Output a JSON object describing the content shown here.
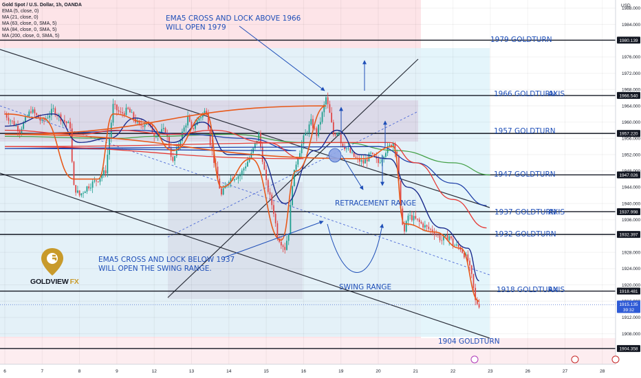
{
  "legend": {
    "title": "Gold Spot / U.S. Dollar, 1h, OANDA",
    "lines": [
      "EMA (5, close, 0)",
      "MA (21, close, 0)",
      "MA (63, close, 0, SMA, 5)",
      "MA (84, close, 0, SMA, 5)",
      "MA (200, close, 0, SMA, 5)"
    ]
  },
  "brand": {
    "name": "GOLDVIEW",
    "suffix": "FX"
  },
  "currency": "USD",
  "colors": {
    "annotation": "#1f4fb8",
    "ema5": "#e8591a",
    "ma21": "#1a2a8c",
    "ma63": "#e53935",
    "ma84": "#1e3fa8",
    "ma200": "#43a047",
    "zone_red": "#fde4e8",
    "zone_blue": "#dff3fa",
    "gold": "#c89a2b"
  },
  "chart_data": {
    "type": "candlestick",
    "instrument": "Gold Spot / U.S. Dollar",
    "timeframe": "1h",
    "ylim": [
      1900.5,
      1990
    ],
    "x_ticks": [
      "6",
      "7",
      "8",
      "9",
      "12",
      "13",
      "14",
      "15",
      "16",
      "19",
      "20",
      "21",
      "22",
      "23",
      "26",
      "27",
      "28"
    ],
    "y_ticks": [
      1908,
      1912,
      1916,
      1920,
      1924,
      1928,
      1932,
      1936,
      1940,
      1944,
      1948,
      1952,
      1956,
      1960,
      1964,
      1968,
      1972,
      1976,
      1980,
      1984,
      1988
    ],
    "price_labels": [
      {
        "value": 1980.139,
        "label": "1980.139"
      },
      {
        "value": 1966.54,
        "label": "1966.540"
      },
      {
        "value": 1957.22,
        "label": "1957.220"
      },
      {
        "value": 1947.026,
        "label": "1947.026"
      },
      {
        "value": 1937.998,
        "label": "1937.998"
      },
      {
        "value": 1932.397,
        "label": "1932.397"
      },
      {
        "value": 1918.481,
        "label": "1918.481"
      },
      {
        "value": 1904.358,
        "label": "1904.358"
      }
    ],
    "current": {
      "value": 1915.135,
      "label": "1915.135",
      "countdown": "39:32"
    },
    "levels": [
      {
        "label": "1979 GOLDTURN",
        "axis": ""
      },
      {
        "label": "1966 GOLDTURN",
        "axis": "AXIS"
      },
      {
        "label": "1957 GOLDTURN",
        "axis": ""
      },
      {
        "label": "1947 GOLDTURN",
        "axis": ""
      },
      {
        "label": "1937 GOLDTURN",
        "axis": "AXIS"
      },
      {
        "label": "1932 GOLDTURN",
        "axis": ""
      },
      {
        "label": "1918 GOLDTURN",
        "axis": "AXIS"
      },
      {
        "label": "1904 GOLDTURN",
        "axis": ""
      }
    ],
    "annotations": {
      "top_note": [
        "EMA5 CROSS AND LOCK ABOVE 1966",
        "WILL OPEN 1979"
      ],
      "bottom_note": [
        "EMA5 CROSS AND LOCK BELOW 1937",
        "WILL OPEN THE SWING RANGE."
      ],
      "retracement": "RETRACEMENT RANGE",
      "swing": "SWING RANGE"
    },
    "series": [
      {
        "name": "EMA (5, close, 0)"
      },
      {
        "name": "MA (21, close, 0)"
      },
      {
        "name": "MA (63, close, 0, SMA, 5)"
      },
      {
        "name": "MA (84, close, 0, SMA, 5)"
      },
      {
        "name": "MA (200, close, 0, SMA, 5)"
      }
    ],
    "price_path": [
      [
        6,
        1962
      ],
      [
        6.4,
        1958
      ],
      [
        6.7,
        1963
      ],
      [
        7,
        1960
      ],
      [
        7.3,
        1963
      ],
      [
        7.5,
        1961
      ],
      [
        7.75,
        1959
      ],
      [
        7.8,
        1950
      ],
      [
        7.85,
        1944
      ],
      [
        8,
        1942
      ],
      [
        8.2,
        1944
      ],
      [
        8.5,
        1946
      ],
      [
        8.7,
        1948
      ],
      [
        8.8,
        1956
      ],
      [
        8.9,
        1964
      ],
      [
        9.1,
        1962
      ],
      [
        9.3,
        1963
      ],
      [
        9.6,
        1959
      ],
      [
        9.8,
        1960
      ],
      [
        12,
        1957
      ],
      [
        12.3,
        1958
      ],
      [
        12.5,
        1950
      ],
      [
        12.7,
        1956
      ],
      [
        12.9,
        1961
      ],
      [
        13,
        1958
      ],
      [
        13.2,
        1961
      ],
      [
        13.4,
        1963
      ],
      [
        13.5,
        1955
      ],
      [
        13.7,
        1946
      ],
      [
        13.8,
        1942
      ],
      [
        14,
        1946
      ],
      [
        14.3,
        1947
      ],
      [
        14.6,
        1952
      ],
      [
        14.8,
        1957
      ],
      [
        15,
        1945
      ],
      [
        15.2,
        1938
      ],
      [
        15.3,
        1932
      ],
      [
        15.5,
        1929
      ],
      [
        15.6,
        1933
      ],
      [
        15.7,
        1945
      ],
      [
        15.8,
        1950
      ],
      [
        16,
        1956
      ],
      [
        16.2,
        1960
      ],
      [
        16.35,
        1957
      ],
      [
        16.5,
        1962
      ],
      [
        16.6,
        1966
      ],
      [
        16.7,
        1962
      ],
      [
        16.8,
        1957
      ],
      [
        16.95,
        1958
      ],
      [
        19,
        1955
      ],
      [
        19.2,
        1953
      ],
      [
        19.4,
        1951
      ],
      [
        19.6,
        1950
      ],
      [
        19.8,
        1952
      ],
      [
        20,
        1950
      ],
      [
        20.2,
        1953
      ],
      [
        20.4,
        1955
      ],
      [
        20.5,
        1952
      ],
      [
        20.6,
        1938
      ],
      [
        20.7,
        1933
      ],
      [
        20.8,
        1937
      ],
      [
        21,
        1936
      ],
      [
        21.3,
        1934
      ],
      [
        21.5,
        1933
      ],
      [
        21.7,
        1931
      ],
      [
        21.9,
        1932
      ],
      [
        22,
        1930
      ],
      [
        22.2,
        1929
      ],
      [
        22.4,
        1926
      ],
      [
        22.5,
        1922
      ],
      [
        22.6,
        1916
      ],
      [
        22.7,
        1915.1
      ]
    ],
    "ema5": [
      [
        6,
        1962
      ],
      [
        7,
        1961
      ],
      [
        7.85,
        1946
      ],
      [
        8.5,
        1946
      ],
      [
        8.9,
        1962
      ],
      [
        9.8,
        1960
      ],
      [
        12.5,
        1953
      ],
      [
        13.4,
        1962
      ],
      [
        13.8,
        1944
      ],
      [
        14.6,
        1951
      ],
      [
        15.4,
        1931
      ],
      [
        15.8,
        1948
      ],
      [
        16.6,
        1964
      ],
      [
        17,
        1957
      ],
      [
        19.6,
        1951
      ],
      [
        20.4,
        1954
      ],
      [
        20.7,
        1935
      ],
      [
        21.5,
        1933
      ],
      [
        22.2,
        1929
      ],
      [
        22.7,
        1916
      ]
    ],
    "ma21": [
      [
        6,
        1959
      ],
      [
        7.3,
        1962
      ],
      [
        8,
        1955
      ],
      [
        8.8,
        1956
      ],
      [
        9.5,
        1961
      ],
      [
        12.5,
        1955
      ],
      [
        13.3,
        1960
      ],
      [
        14,
        1952
      ],
      [
        14.8,
        1952
      ],
      [
        15.5,
        1940
      ],
      [
        16.3,
        1953
      ],
      [
        16.9,
        1958
      ],
      [
        19.5,
        1952
      ],
      [
        20.3,
        1951
      ],
      [
        20.8,
        1944
      ],
      [
        21.7,
        1934
      ],
      [
        22.4,
        1929
      ],
      [
        22.7,
        1921
      ]
    ],
    "ma63": [
      [
        6,
        1958
      ],
      [
        8,
        1957
      ],
      [
        9,
        1958
      ],
      [
        12.5,
        1957
      ],
      [
        13.6,
        1958
      ],
      [
        15,
        1955
      ],
      [
        16,
        1951
      ],
      [
        17,
        1954
      ],
      [
        19.5,
        1955
      ],
      [
        20.3,
        1955
      ],
      [
        21,
        1950
      ],
      [
        22,
        1941
      ],
      [
        22.9,
        1934
      ]
    ],
    "ma84": [
      [
        6,
        1957
      ],
      [
        8,
        1957.5
      ],
      [
        9.5,
        1958
      ],
      [
        12.8,
        1957
      ],
      [
        14.5,
        1956
      ],
      [
        15.8,
        1953
      ],
      [
        17,
        1953.5
      ],
      [
        20,
        1954
      ],
      [
        21,
        1950
      ],
      [
        22,
        1945
      ],
      [
        22.9,
        1939.5
      ]
    ],
    "ma200": [
      [
        6,
        1956.5
      ],
      [
        9,
        1956
      ],
      [
        12,
        1956.5
      ],
      [
        14,
        1957
      ],
      [
        16,
        1955
      ],
      [
        19,
        1955
      ],
      [
        20.5,
        1953
      ],
      [
        22,
        1950
      ],
      [
        23,
        1947
      ]
    ]
  }
}
